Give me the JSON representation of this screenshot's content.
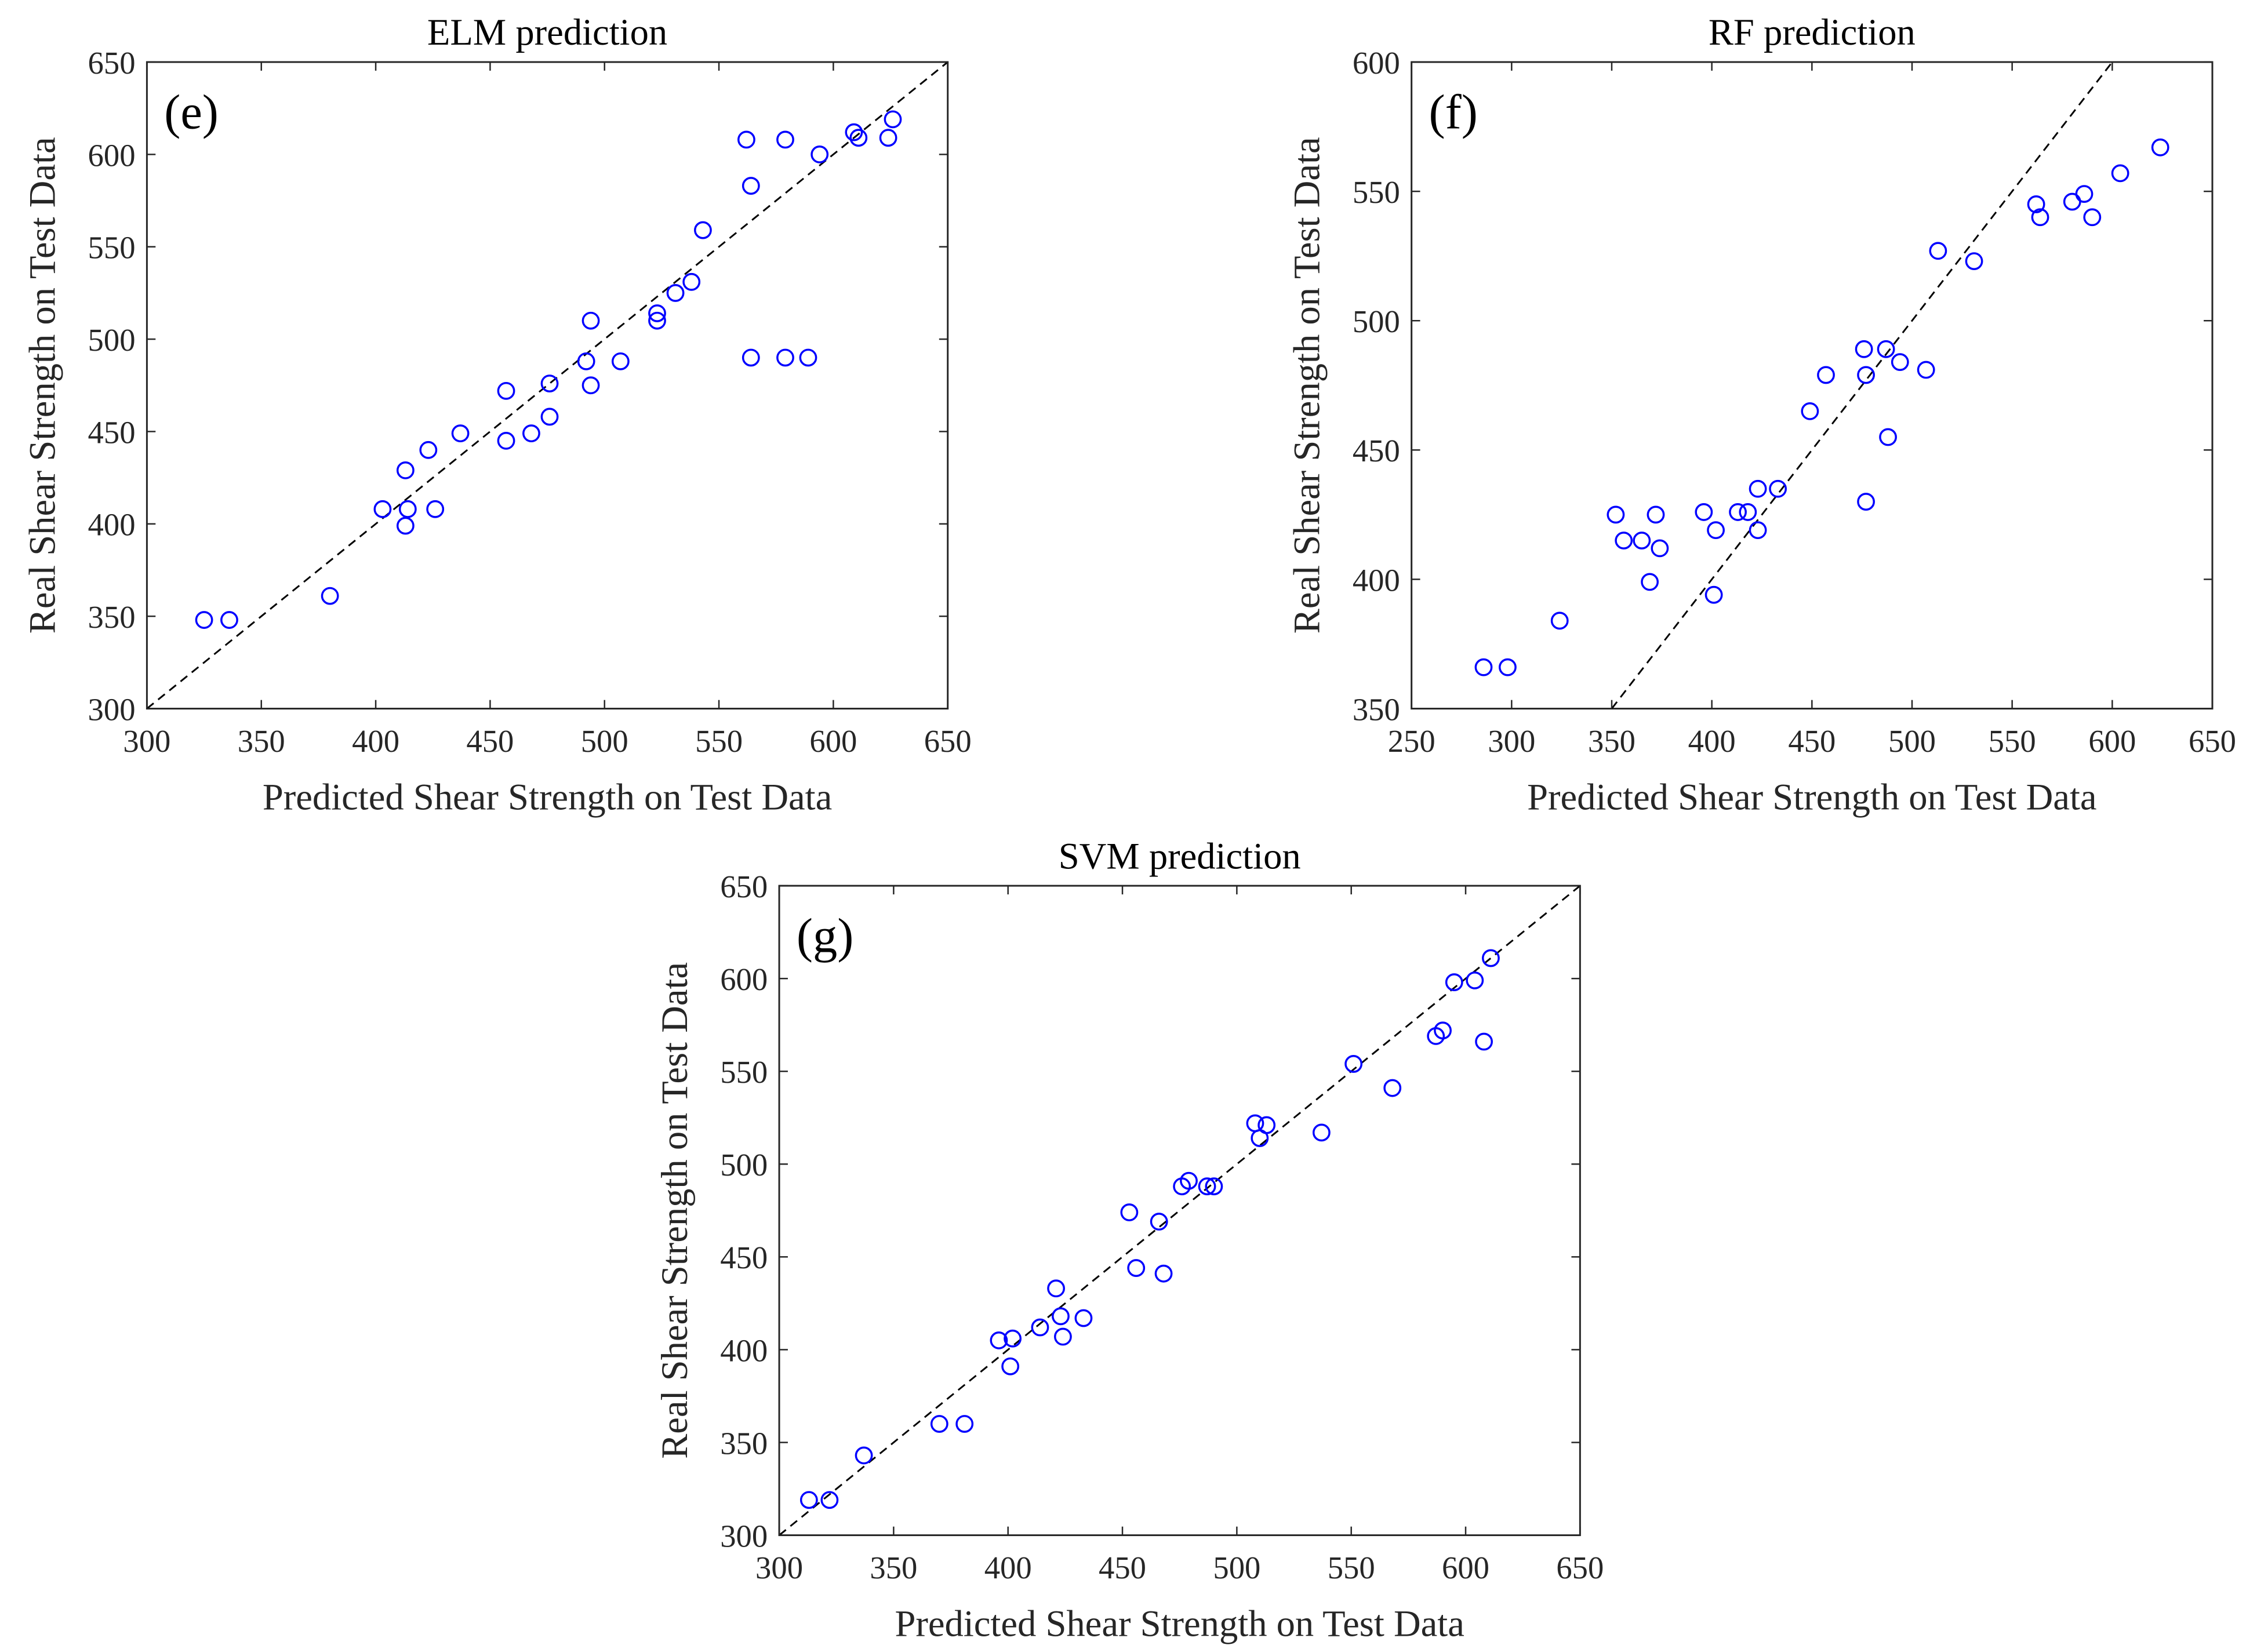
{
  "chart_data": [
    {
      "type": "scatter",
      "title": "ELM prediction",
      "panel_label": "(e)",
      "xlabel": "Predicted Shear Strength on Test Data",
      "ylabel": "Real Shear Strength on Test Data",
      "xlim": [
        300,
        650
      ],
      "ylim": [
        300,
        650
      ],
      "xticks": [
        300,
        350,
        400,
        450,
        500,
        550,
        600,
        650
      ],
      "yticks": [
        300,
        350,
        400,
        450,
        500,
        550,
        600,
        650
      ],
      "reference_line": "y = x (dashed)",
      "marker_color": "#0000ff",
      "points": [
        [
          325,
          348
        ],
        [
          336,
          348
        ],
        [
          380,
          361
        ],
        [
          403,
          408
        ],
        [
          413,
          429
        ],
        [
          414,
          408
        ],
        [
          413,
          399
        ],
        [
          423,
          440
        ],
        [
          426,
          408
        ],
        [
          437,
          449
        ],
        [
          457,
          472
        ],
        [
          457,
          445
        ],
        [
          468,
          449
        ],
        [
          476,
          476
        ],
        [
          476,
          458
        ],
        [
          492,
          488
        ],
        [
          494,
          510
        ],
        [
          494,
          475
        ],
        [
          507,
          488
        ],
        [
          523,
          514
        ],
        [
          523,
          510
        ],
        [
          531,
          525
        ],
        [
          538,
          531
        ],
        [
          543,
          559
        ],
        [
          562,
          608
        ],
        [
          564,
          583
        ],
        [
          564,
          490
        ],
        [
          579,
          608
        ],
        [
          579,
          490
        ],
        [
          589,
          490
        ],
        [
          594,
          600
        ],
        [
          609,
          612
        ],
        [
          611,
          609
        ],
        [
          624,
          609
        ],
        [
          626,
          619
        ]
      ]
    },
    {
      "type": "scatter",
      "title": "RF prediction",
      "panel_label": "(f)",
      "xlabel": "Predicted Shear Strength on Test Data",
      "ylabel": "Real Shear Strength on Test Data",
      "xlim": [
        250,
        650
      ],
      "ylim": [
        350,
        600
      ],
      "xticks": [
        250,
        300,
        350,
        400,
        450,
        500,
        550,
        600,
        650
      ],
      "yticks": [
        350,
        400,
        450,
        500,
        550,
        600
      ],
      "reference_line": "y = x (dashed)",
      "marker_color": "#0000ff",
      "points": [
        [
          286,
          366
        ],
        [
          298,
          366
        ],
        [
          324,
          384
        ],
        [
          352,
          425
        ],
        [
          356,
          415
        ],
        [
          365,
          415
        ],
        [
          372,
          425
        ],
        [
          374,
          412
        ],
        [
          369,
          399
        ],
        [
          396,
          426
        ],
        [
          402,
          419
        ],
        [
          401,
          394
        ],
        [
          413,
          426
        ],
        [
          418,
          426
        ],
        [
          423,
          435
        ],
        [
          423,
          419
        ],
        [
          433,
          435
        ],
        [
          449,
          465
        ],
        [
          457,
          479
        ],
        [
          476,
          489
        ],
        [
          477,
          479
        ],
        [
          477,
          430
        ],
        [
          487,
          489
        ],
        [
          488,
          455
        ],
        [
          494,
          484
        ],
        [
          507,
          481
        ],
        [
          513,
          527
        ],
        [
          531,
          523
        ],
        [
          562,
          545
        ],
        [
          564,
          540
        ],
        [
          580,
          546
        ],
        [
          586,
          549
        ],
        [
          590,
          540
        ],
        [
          604,
          557
        ],
        [
          624,
          567
        ]
      ]
    },
    {
      "type": "scatter",
      "title": "SVM prediction",
      "panel_label": "(g)",
      "xlabel": "Predicted Shear Strength on Test Data",
      "ylabel": "Real Shear Strength on Test Data",
      "xlim": [
        300,
        650
      ],
      "ylim": [
        300,
        650
      ],
      "xticks": [
        300,
        350,
        400,
        450,
        500,
        550,
        600,
        650
      ],
      "yticks": [
        300,
        350,
        400,
        450,
        500,
        550,
        600,
        650
      ],
      "reference_line": "y = x (dashed)",
      "marker_color": "#0000ff",
      "points": [
        [
          313,
          319
        ],
        [
          322,
          319
        ],
        [
          337,
          343
        ],
        [
          370,
          360
        ],
        [
          381,
          360
        ],
        [
          396,
          405
        ],
        [
          402,
          406
        ],
        [
          401,
          391
        ],
        [
          414,
          412
        ],
        [
          421,
          433
        ],
        [
          423,
          418
        ],
        [
          424,
          407
        ],
        [
          433,
          417
        ],
        [
          453,
          474
        ],
        [
          456,
          444
        ],
        [
          466,
          469
        ],
        [
          468,
          441
        ],
        [
          476,
          488
        ],
        [
          479,
          491
        ],
        [
          487,
          488
        ],
        [
          490,
          488
        ],
        [
          508,
          522
        ],
        [
          510,
          514
        ],
        [
          513,
          521
        ],
        [
          537,
          517
        ],
        [
          551,
          554
        ],
        [
          568,
          541
        ],
        [
          587,
          569
        ],
        [
          590,
          572
        ],
        [
          595,
          598
        ],
        [
          604,
          599
        ],
        [
          608,
          566
        ],
        [
          611,
          611
        ]
      ]
    }
  ]
}
